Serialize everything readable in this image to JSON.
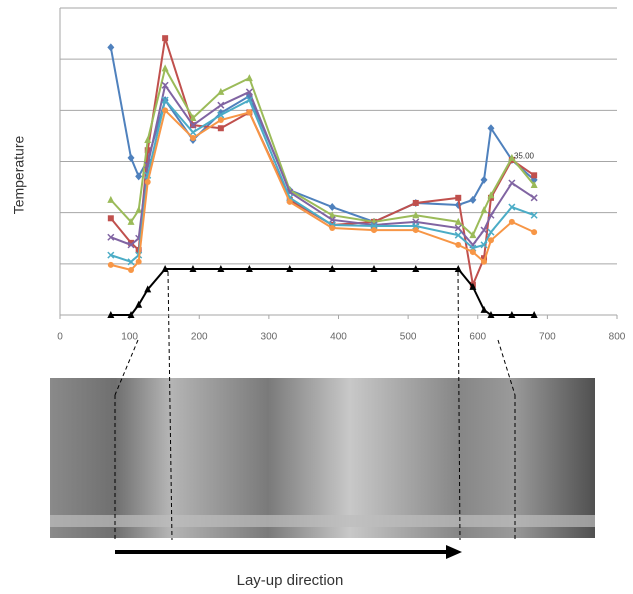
{
  "chart_data": {
    "type": "line",
    "y_label": "Temperature",
    "x": [
      73,
      102,
      113,
      126,
      151,
      191,
      231,
      272,
      330,
      391,
      451,
      511,
      572,
      593,
      609,
      619,
      649,
      681
    ],
    "xlim": [
      0,
      800
    ],
    "xticks": [
      0,
      100,
      200,
      300,
      400,
      500,
      600,
      700,
      800
    ],
    "ylim": [
      0,
      6
    ],
    "yticks": [
      0,
      1,
      2,
      3,
      4,
      5,
      6
    ],
    "grid": true,
    "series": [
      {
        "color": "#4f81bd",
        "marker": "diamond",
        "values": [
          5.23,
          3.07,
          2.71,
          3.03,
          4.2,
          3.42,
          3.95,
          4.28,
          2.44,
          2.11,
          1.82,
          2.19,
          2.15,
          2.25,
          2.64,
          3.65,
          3.03,
          2.64
        ]
      },
      {
        "color": "#c0504d",
        "marker": "square",
        "values": [
          1.89,
          1.41,
          1.27,
          3.22,
          5.41,
          3.71,
          3.65,
          3.96,
          2.25,
          1.76,
          1.82,
          2.19,
          2.29,
          0.59,
          1.11,
          2.29,
          3.03,
          2.73
        ]
      },
      {
        "color": "#9bbb59",
        "marker": "triangle",
        "values": [
          2.25,
          1.82,
          2.05,
          3.42,
          4.82,
          3.85,
          4.36,
          4.63,
          2.44,
          1.95,
          1.82,
          1.95,
          1.82,
          1.56,
          2.05,
          2.34,
          3.07,
          2.54
        ]
      },
      {
        "color": "#8064a2",
        "marker": "x",
        "values": [
          1.52,
          1.37,
          1.5,
          2.93,
          4.49,
          3.71,
          4.1,
          4.36,
          2.4,
          1.86,
          1.76,
          1.82,
          1.7,
          1.37,
          1.66,
          1.95,
          2.58,
          2.29
        ]
      },
      {
        "color": "#4bacc6",
        "marker": "x",
        "values": [
          1.17,
          1.04,
          1.17,
          2.73,
          4.2,
          3.57,
          3.91,
          4.2,
          2.29,
          1.76,
          1.74,
          1.74,
          1.56,
          1.31,
          1.37,
          1.62,
          2.11,
          1.95
        ]
      },
      {
        "color": "#f79646",
        "marker": "circle",
        "values": [
          0.98,
          0.88,
          1.04,
          2.6,
          4.0,
          3.46,
          3.81,
          3.96,
          2.21,
          1.7,
          1.66,
          1.66,
          1.37,
          1.23,
          1.04,
          1.46,
          1.82,
          1.62
        ]
      },
      {
        "color": "#000000",
        "marker": "triangle",
        "values": [
          0,
          0,
          0.2,
          0.5,
          0.9,
          0.9,
          0.9,
          0.9,
          0.9,
          0.9,
          0.9,
          0.9,
          0.9,
          0.55,
          0.1,
          0,
          0,
          0
        ]
      }
    ],
    "annotations": [
      {
        "text": "35.00",
        "x": 652,
        "y": 3.1
      }
    ],
    "caption": "Lay-up direction"
  }
}
